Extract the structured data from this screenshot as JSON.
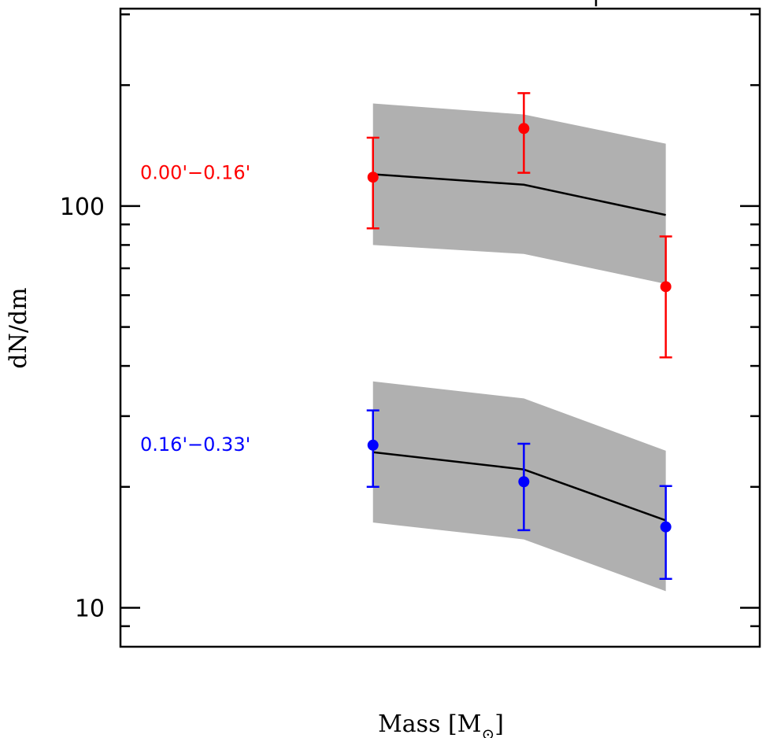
{
  "chart_data": {
    "type": "line",
    "title": "",
    "xlabel": "Mass [M⊙]",
    "xlabel_main": "Mass [M",
    "xlabel_sub": "⊙",
    "xlabel_close": "]",
    "ylabel": "dN/dm",
    "yscale": "log",
    "ylim": [
      8.0,
      310
    ],
    "xlim": [
      0,
      1
    ],
    "x_ticks_shown": false,
    "y_major_ticks": [
      10,
      100
    ],
    "y_tick_labels": [
      "10",
      "100"
    ],
    "y_minor_ticks": [
      9,
      20,
      30,
      40,
      50,
      60,
      70,
      80,
      90,
      200,
      300
    ],
    "grid": false,
    "x": [
      0.395,
      0.631,
      0.853
    ],
    "series": [
      {
        "name": "0.00'−0.16'",
        "color": "#ff0000",
        "label_value_y": 121,
        "points": [
          118,
          156,
          63
        ],
        "err_low": [
          88,
          121,
          42
        ],
        "err_high": [
          148,
          191,
          84
        ],
        "model_line": [
          120,
          113,
          95
        ],
        "band_low": [
          80,
          76,
          64
        ],
        "band_high": [
          180,
          169,
          143
        ]
      },
      {
        "name": "0.16'−0.33'",
        "color": "#0000ff",
        "label_value_y": 25.5,
        "points": [
          25.4,
          20.6,
          15.9
        ],
        "err_low": [
          20.0,
          15.6,
          11.8
        ],
        "err_high": [
          31.0,
          25.6,
          20.1
        ],
        "model_line": [
          24.4,
          22.1,
          16.5
        ],
        "band_low": [
          16.3,
          14.8,
          11.0
        ],
        "band_high": [
          36.6,
          33.2,
          24.6
        ]
      }
    ],
    "band_color": "#b0b0b0",
    "line_color": "#000000"
  }
}
